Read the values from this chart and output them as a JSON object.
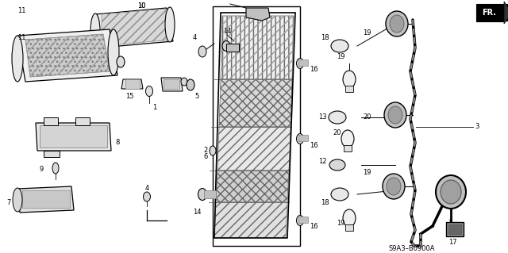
{
  "background_color": "#ffffff",
  "diagram_code": "S9A3–B0900A",
  "figsize": [
    6.4,
    3.19
  ],
  "dpi": 100
}
